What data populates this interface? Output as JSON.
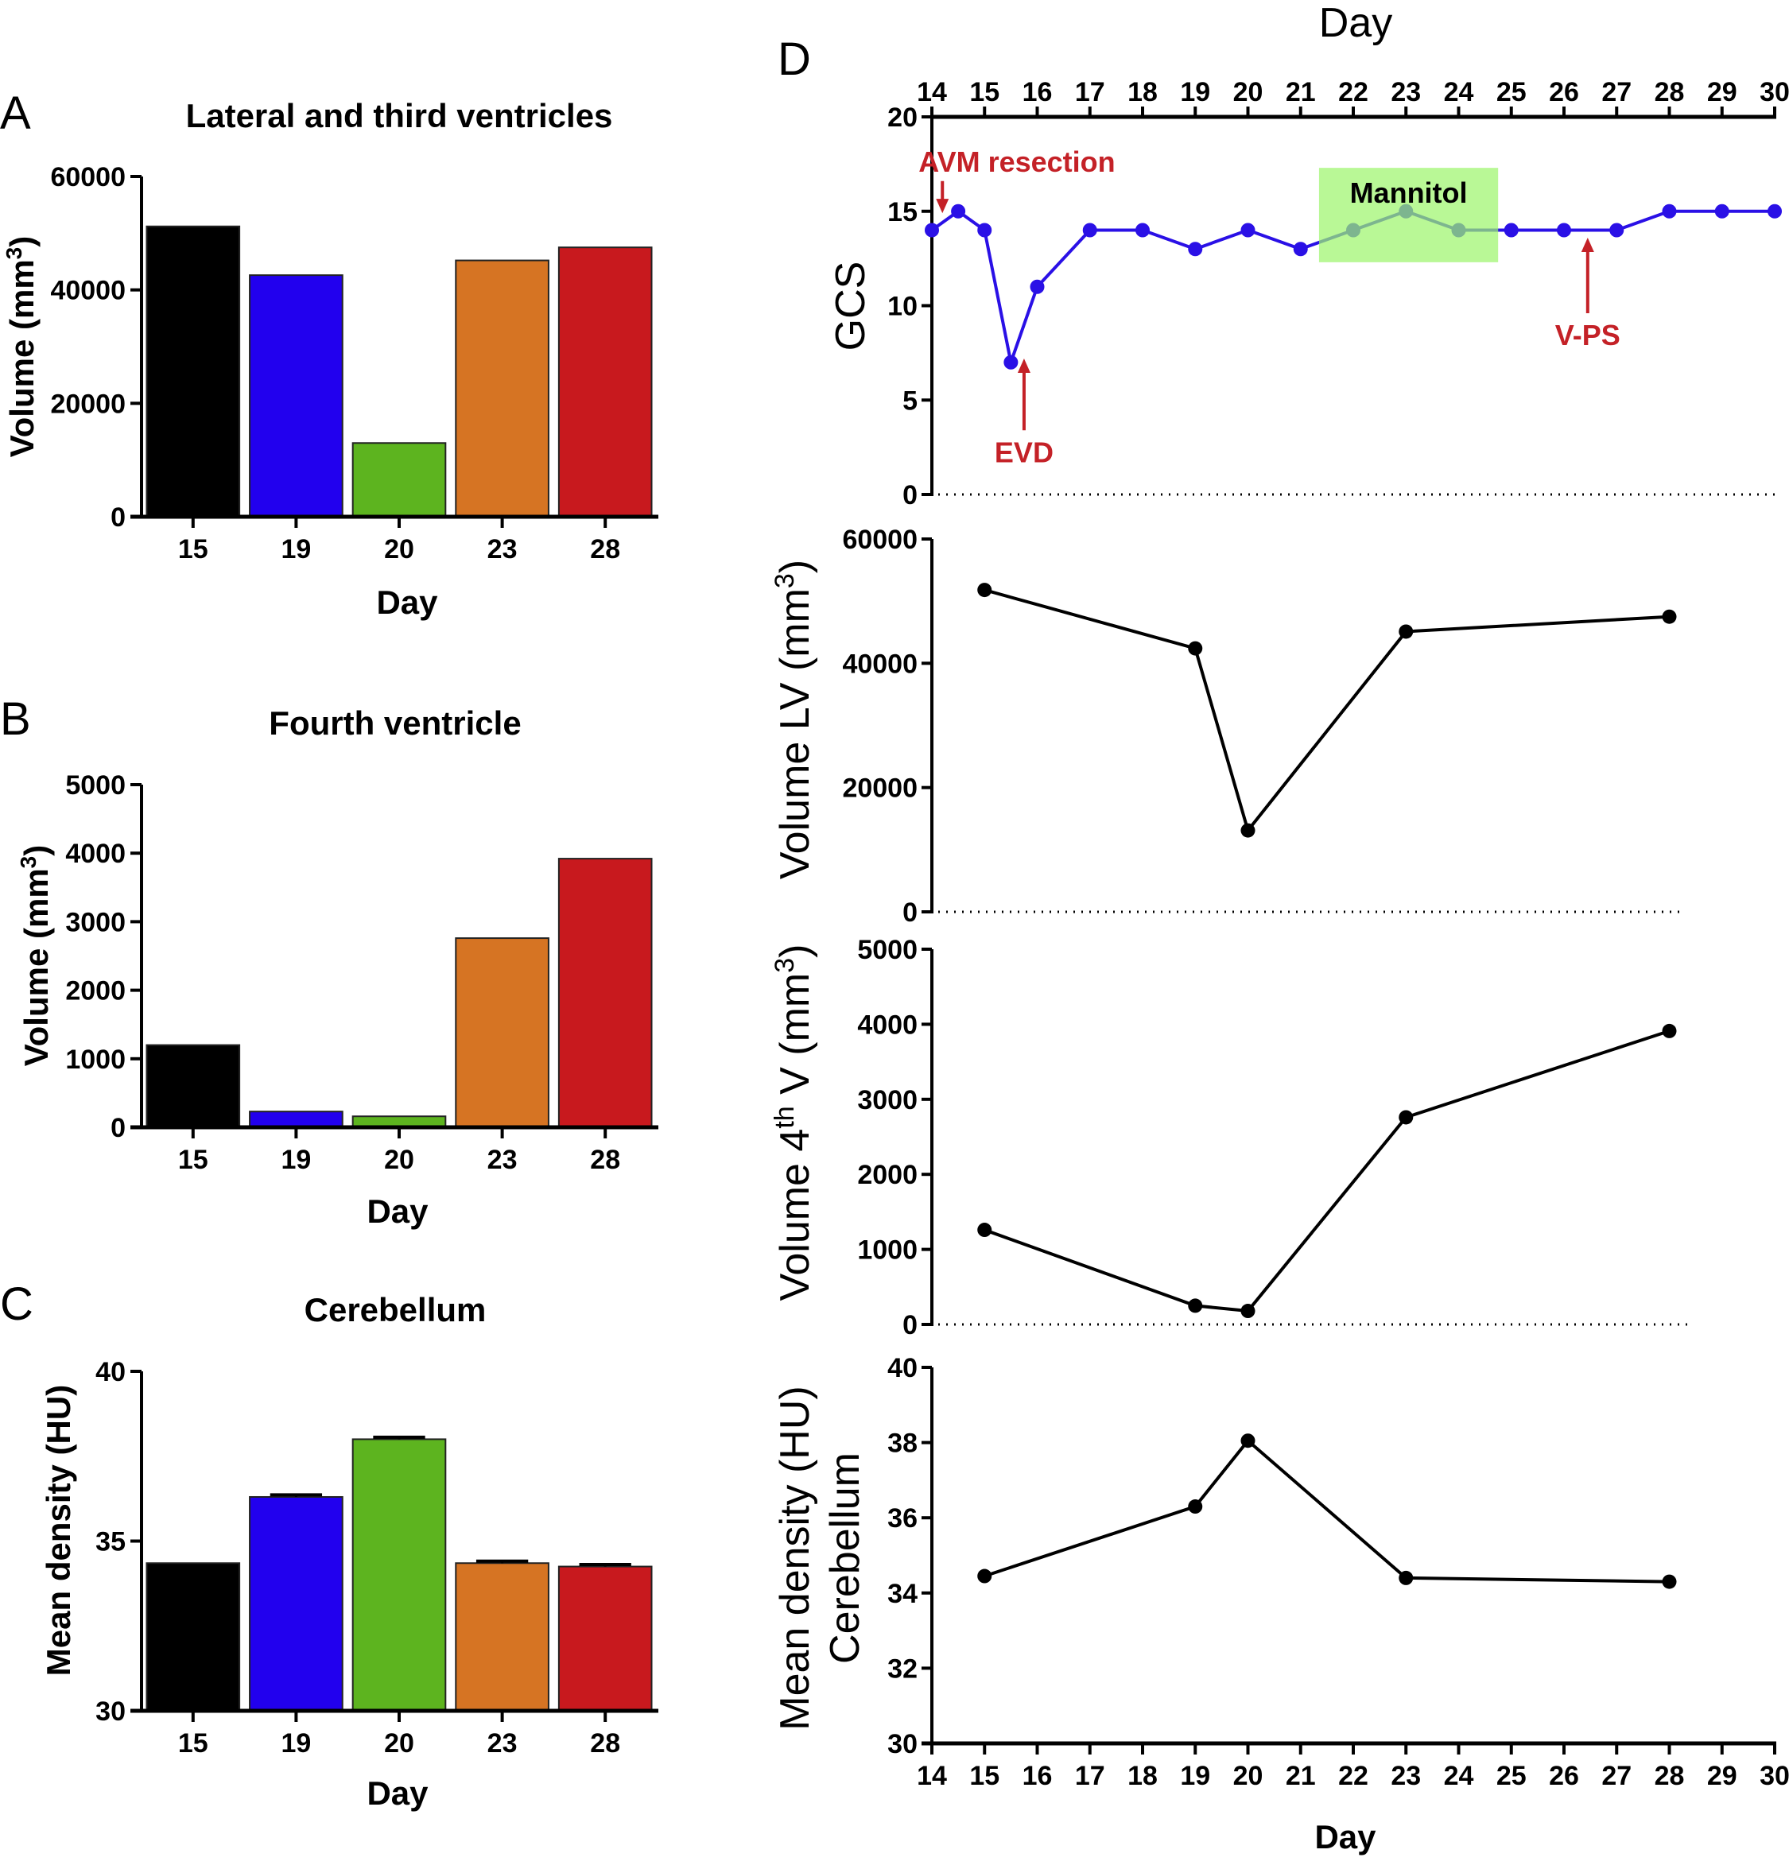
{
  "colors": {
    "day15": "#000000",
    "day19": "#2200ee",
    "day20": "#5db41f",
    "day23": "#d67423",
    "day28": "#c8191e",
    "gcs_line": "#2a10e6",
    "annotation": "#c42127",
    "mannitol_box": "#9ef56e"
  },
  "chart_data": [
    {
      "id": "A",
      "panel_letter": "A",
      "type": "bar",
      "title": "Lateral and third ventricles",
      "xlabel": "Day",
      "ylabel": "Volume (mm",
      "ylabel_sup": "3",
      "ylabel_end": ")",
      "categories": [
        "15",
        "19",
        "20",
        "23",
        "28"
      ],
      "values": [
        51200,
        42600,
        13000,
        45200,
        47500
      ],
      "ylim": [
        0,
        60000
      ],
      "yticks": [
        0,
        20000,
        40000,
        60000
      ],
      "error_bars": false
    },
    {
      "id": "B",
      "panel_letter": "B",
      "type": "bar",
      "title": "Fourth ventricle",
      "xlabel": "Day",
      "ylabel": "Volume (mm",
      "ylabel_sup": "3",
      "ylabel_end": ")",
      "categories": [
        "15",
        "19",
        "20",
        "23",
        "28"
      ],
      "values": [
        1200,
        230,
        160,
        2760,
        3920
      ],
      "ylim": [
        0,
        5000
      ],
      "yticks": [
        0,
        1000,
        2000,
        3000,
        4000,
        5000
      ],
      "error_bars": false
    },
    {
      "id": "C",
      "panel_letter": "C",
      "type": "bar",
      "title": "Cerebellum",
      "xlabel": "Day",
      "ylabel": "Mean density (HU)",
      "categories": [
        "15",
        "19",
        "20",
        "23",
        "28"
      ],
      "values": [
        34.35,
        36.3,
        38.0,
        34.35,
        34.25
      ],
      "errors": [
        0,
        0.06,
        0.06,
        0.06,
        0.06
      ],
      "ylim": [
        30,
        40
      ],
      "yticks": [
        30,
        35,
        40
      ],
      "error_bars": true
    },
    {
      "id": "D-GCS",
      "panel_letter": "D",
      "type": "line",
      "top_xlabel": "Day",
      "ylabel": "GCS",
      "x": [
        14,
        14.5,
        15,
        15.5,
        16,
        17,
        18,
        19,
        20,
        21,
        22,
        23,
        24,
        25,
        26,
        27,
        28,
        29,
        30
      ],
      "y": [
        14,
        15,
        14,
        7,
        11,
        14,
        14,
        13,
        14,
        13,
        14,
        15,
        14,
        14,
        14,
        14,
        15,
        15,
        15
      ],
      "xlim": [
        14,
        30
      ],
      "xticks": [
        14,
        15,
        16,
        17,
        18,
        19,
        20,
        21,
        22,
        23,
        24,
        25,
        26,
        27,
        28,
        29,
        30
      ],
      "ylim": [
        0,
        20
      ],
      "yticks": [
        0,
        5,
        10,
        15,
        20
      ],
      "annotations": [
        {
          "text": "AVM resection",
          "x": 14.2,
          "arrow": "down",
          "arrow_from": 16.6,
          "arrow_to": 14.9
        },
        {
          "text": "EVD",
          "x": 15.75,
          "arrow": "up",
          "arrow_from": 3.4,
          "arrow_to": 7.2
        },
        {
          "text": "V-PS",
          "x": 26.45,
          "arrow": "up",
          "arrow_from": 9.6,
          "arrow_to": 13.6
        }
      ],
      "shaded_region": {
        "label": "Mannitol",
        "x_from": 21.35,
        "x_to": 24.75,
        "y_from": 12.3,
        "y_to": 17.3
      }
    },
    {
      "id": "D-LV",
      "type": "line",
      "ylabel": "Volume LV (mm",
      "ylabel_sup": "3",
      "ylabel_end": ")",
      "x": [
        15,
        19,
        20,
        23,
        28
      ],
      "y": [
        51800,
        42400,
        13100,
        45100,
        47500
      ],
      "xlim": [
        14,
        30
      ],
      "ylim": [
        0,
        60000
      ],
      "yticks": [
        0,
        20000,
        40000,
        60000
      ]
    },
    {
      "id": "D-4V",
      "type": "line",
      "ylabel_pre": "Volume 4",
      "ylabel_sup1": "th",
      "ylabel_mid": " V (mm",
      "ylabel_sup2": "3",
      "ylabel_end": ")",
      "x": [
        15,
        19,
        20,
        23,
        28
      ],
      "y": [
        1260,
        250,
        180,
        2760,
        3910
      ],
      "xlim": [
        14,
        30
      ],
      "ylim": [
        0,
        5000
      ],
      "yticks": [
        0,
        1000,
        2000,
        3000,
        4000,
        5000
      ]
    },
    {
      "id": "D-CB",
      "type": "line",
      "ylabel_line1": "Mean density (HU)",
      "ylabel_line2": "Cerebellum",
      "xlabel": "Day",
      "x": [
        15,
        19,
        20,
        23,
        28
      ],
      "y": [
        34.45,
        36.3,
        38.05,
        34.4,
        34.3
      ],
      "xlim": [
        14,
        30
      ],
      "xticks": [
        14,
        15,
        16,
        17,
        18,
        19,
        20,
        21,
        22,
        23,
        24,
        25,
        26,
        27,
        28,
        29,
        30
      ],
      "ylim": [
        30,
        40
      ],
      "yticks": [
        30,
        32,
        34,
        36,
        38,
        40
      ]
    }
  ]
}
